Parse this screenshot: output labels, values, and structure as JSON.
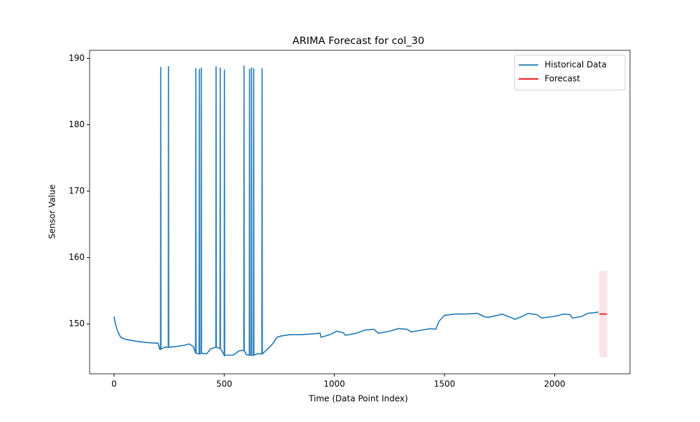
{
  "chart_data": {
    "type": "line",
    "title": "ARIMA Forecast for col_30",
    "xlabel": "Time (Data Point Index)",
    "ylabel": "Sensor Value",
    "xlim": [
      -111,
      2342
    ],
    "ylim": [
      142.5,
      191.2
    ],
    "xticks": [
      0,
      500,
      1000,
      1500,
      2000
    ],
    "yticks": [
      150,
      160,
      170,
      180,
      190
    ],
    "legend": "upper right",
    "series": [
      {
        "name": "Historical Data",
        "color": "#1f77b4",
        "x": [
          0,
          5,
          15,
          30,
          50,
          100,
          150,
          200,
          207,
          211,
          212,
          213,
          230,
          246,
          247,
          248,
          280,
          320,
          340,
          360,
          370,
          371,
          372,
          386,
          387,
          388,
          395,
          396,
          397,
          420,
          440,
          462,
          463,
          464,
          481,
          482,
          483,
          500,
          501,
          502,
          540,
          570,
          589,
          590,
          591,
          600,
          614,
          615,
          616,
          623,
          624,
          625,
          633,
          634,
          635,
          650,
          671,
          672,
          673,
          690,
          720,
          740,
          760,
          800,
          850,
          900,
          935,
          940,
          980,
          1010,
          1040,
          1050,
          1100,
          1140,
          1180,
          1200,
          1250,
          1290,
          1330,
          1350,
          1400,
          1440,
          1460,
          1475,
          1500,
          1550,
          1600,
          1650,
          1680,
          1700,
          1740,
          1760,
          1800,
          1820,
          1850,
          1880,
          1920,
          1940,
          1990,
          2020,
          2040,
          2070,
          2080,
          2120,
          2150,
          2180,
          2200
        ],
        "values": [
          151.1,
          150.2,
          149,
          148,
          147.7,
          147.4,
          147.2,
          147.1,
          146.2,
          146.2,
          188.7,
          146.2,
          146.5,
          146.5,
          188.8,
          146.5,
          146.6,
          146.8,
          147,
          146.6,
          145.6,
          188.5,
          145.6,
          145.5,
          188.4,
          145.5,
          145.6,
          188.6,
          145.6,
          145.5,
          146.3,
          146.5,
          188.8,
          146.5,
          146.3,
          188.6,
          146.3,
          145.3,
          188.3,
          145.3,
          145.3,
          146,
          146,
          188.9,
          146,
          145.4,
          145.3,
          188.4,
          145.3,
          145.3,
          188.6,
          145.3,
          145.3,
          188.5,
          145.3,
          145.5,
          145.5,
          188.5,
          145.5,
          146,
          147,
          148,
          148.2,
          148.4,
          148.4,
          148.5,
          148.6,
          148,
          148.4,
          148.9,
          148.7,
          148.3,
          148.6,
          149.1,
          149.2,
          148.6,
          148.9,
          149.3,
          149.2,
          148.8,
          149.1,
          149.3,
          149.2,
          150.4,
          151.3,
          151.5,
          151.5,
          151.6,
          151.1,
          151,
          151.3,
          151.5,
          151,
          150.7,
          151.1,
          151.6,
          151.4,
          150.9,
          151.1,
          151.3,
          151.5,
          151.4,
          150.9,
          151.1,
          151.6,
          151.7,
          151.8
        ]
      },
      {
        "name": "Forecast",
        "color": "#ff0000",
        "x": [
          2203,
          2238
        ],
        "values": [
          151.5,
          151.5
        ],
        "lower": [
          145,
          145
        ],
        "upper": [
          158,
          158
        ],
        "band_color": "#f8c8d2"
      }
    ]
  }
}
